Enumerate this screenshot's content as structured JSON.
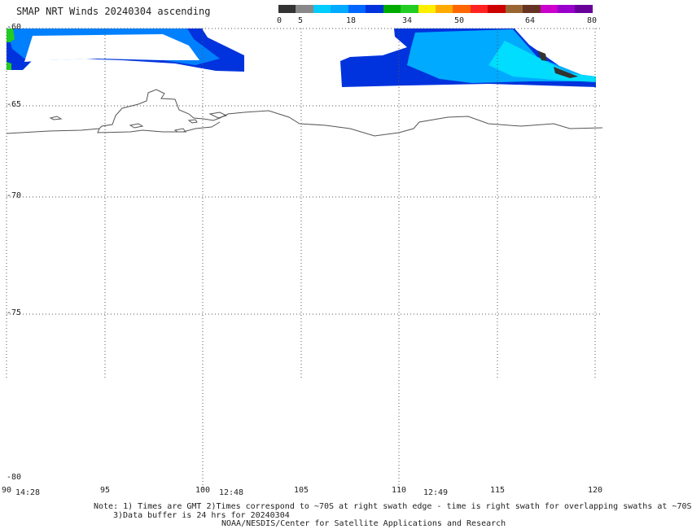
{
  "title": "SMAP NRT Winds 20240304 ascending",
  "colorbar": {
    "labels": [
      "0",
      "5",
      "18",
      "34",
      "50",
      "64",
      "80"
    ],
    "colors": [
      "#333333",
      "#888888",
      "#00ccff",
      "#00aaff",
      "#0066ff",
      "#0033dd",
      "#00aa00",
      "#22cc22",
      "#ffee00",
      "#ffaa00",
      "#ff6600",
      "#ff2222",
      "#cc0000",
      "#996633",
      "#663322",
      "#cc00cc",
      "#9900cc",
      "#660099"
    ]
  },
  "map": {
    "lat_labels": [
      "-60",
      "-65",
      "-70",
      "-75",
      "-80"
    ],
    "lon_labels": [
      "90",
      "95",
      "100",
      "105",
      "110",
      "115",
      "120"
    ],
    "times": [
      "14:28",
      "12:48",
      "12:49"
    ]
  },
  "note_line1": "Note: 1) Times are GMT 2)Times correspond to ~70S at right swath edge - time is right swath for overlapping swaths at ~70S",
  "note_line2": "3)Data buffer is 24 hrs for 20240304",
  "credit": "NOAA/NESDIS/Center for Satellite Applications and Research"
}
